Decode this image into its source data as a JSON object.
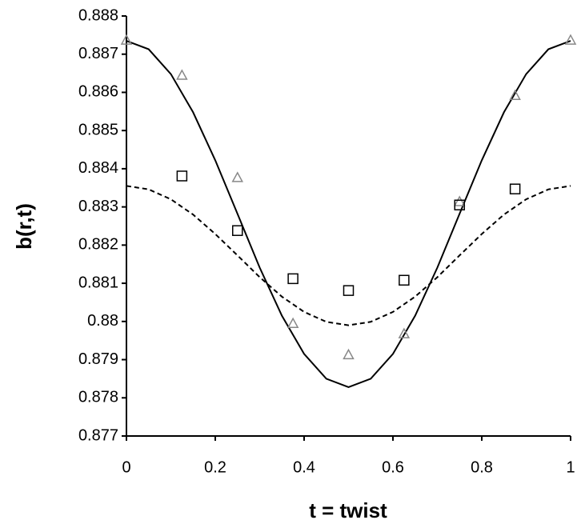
{
  "chart_data": {
    "type": "line",
    "x_label": "t = twist",
    "y_label": "b(r,t)",
    "xlim": [
      0,
      1
    ],
    "xticks": [
      0,
      0.2,
      0.4,
      0.6,
      0.8,
      1
    ],
    "ylim": [
      0.877,
      0.888
    ],
    "yticks": [
      0.877,
      0.878,
      0.879,
      0.88,
      0.881,
      0.882,
      0.883,
      0.884,
      0.885,
      0.886,
      0.887,
      0.888
    ],
    "grid": false,
    "series": [
      {
        "style": "solid",
        "color": "#000000",
        "x": [
          0,
          0.05,
          0.1,
          0.15,
          0.2,
          0.25,
          0.3,
          0.35,
          0.4,
          0.45,
          0.5,
          0.55,
          0.6,
          0.65,
          0.7,
          0.75,
          0.8,
          0.85,
          0.9,
          0.95,
          1
        ],
        "values": [
          0.88735,
          0.88713,
          0.88648,
          0.88548,
          0.88422,
          0.88282,
          0.88141,
          0.88015,
          0.87915,
          0.8785,
          0.87828,
          0.8785,
          0.87915,
          0.88015,
          0.88141,
          0.88282,
          0.88422,
          0.88548,
          0.88648,
          0.88713,
          0.88735
        ]
      },
      {
        "style": "dashed",
        "color": "#000000",
        "x": [
          0,
          0.05,
          0.1,
          0.15,
          0.2,
          0.25,
          0.3,
          0.35,
          0.4,
          0.45,
          0.5,
          0.55,
          0.6,
          0.65,
          0.7,
          0.75,
          0.8,
          0.85,
          0.9,
          0.95,
          1
        ],
        "values": [
          0.88355,
          0.88346,
          0.8832,
          0.8828,
          0.88229,
          0.88173,
          0.88116,
          0.88065,
          0.88025,
          0.87999,
          0.8799,
          0.87999,
          0.88025,
          0.88065,
          0.88116,
          0.88173,
          0.88229,
          0.8828,
          0.8832,
          0.88346,
          0.88355
        ]
      },
      {
        "style": "triangle",
        "color": "#888888",
        "x": [
          0,
          0.125,
          0.25,
          0.375,
          0.5,
          0.625,
          0.75,
          0.875,
          1
        ],
        "values": [
          0.88737,
          0.88645,
          0.88377,
          0.87995,
          0.87913,
          0.87968,
          0.88314,
          0.88592,
          0.88737
        ]
      },
      {
        "style": "square",
        "color": "#000000",
        "x": [
          0.125,
          0.25,
          0.375,
          0.5,
          0.625,
          0.75,
          0.875
        ],
        "values": [
          0.88381,
          0.88238,
          0.88112,
          0.88081,
          0.88108,
          0.88305,
          0.88347
        ]
      }
    ]
  }
}
